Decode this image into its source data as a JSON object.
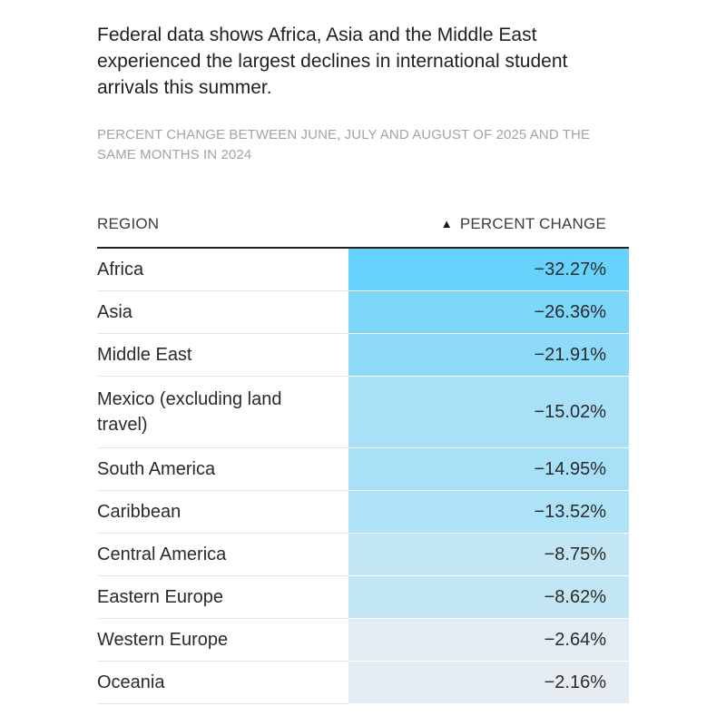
{
  "headline": "Federal data shows Africa, Asia and the Middle East experienced the largest declines in international student arrivals this summer.",
  "subhead": "PERCENT CHANGE BETWEEN JUNE, JULY AND AUGUST OF 2025 AND THE SAME MONTHS IN 2024",
  "table": {
    "column_region": "REGION",
    "column_value": "PERCENT CHANGE",
    "sort_icon": "sort-ascending-triangle"
  },
  "colors": {
    "scale_darkest": "#66d3fc",
    "scale_lightest": "#e6edf2",
    "rule_dark": "#222222",
    "rule_light": "#e4e4e4"
  },
  "chart_data": {
    "type": "table",
    "columns": [
      "REGION",
      "PERCENT CHANGE"
    ],
    "rows": [
      {
        "region": "Africa",
        "value": -32.27,
        "display": "−32.27%"
      },
      {
        "region": "Asia",
        "value": -26.36,
        "display": "−26.36%"
      },
      {
        "region": "Middle East",
        "value": -21.91,
        "display": "−21.91%"
      },
      {
        "region": "Mexico (excluding land travel)",
        "value": -15.02,
        "display": "−15.02%"
      },
      {
        "region": "South America",
        "value": -14.95,
        "display": "−14.95%"
      },
      {
        "region": "Caribbean",
        "value": -13.52,
        "display": "−13.52%"
      },
      {
        "region": "Central America",
        "value": -8.75,
        "display": "−8.75%"
      },
      {
        "region": "Eastern Europe",
        "value": -8.62,
        "display": "−8.62%"
      },
      {
        "region": "Western Europe",
        "value": -2.64,
        "display": "−2.64%"
      },
      {
        "region": "Oceania",
        "value": -2.16,
        "display": "−2.16%"
      }
    ]
  }
}
